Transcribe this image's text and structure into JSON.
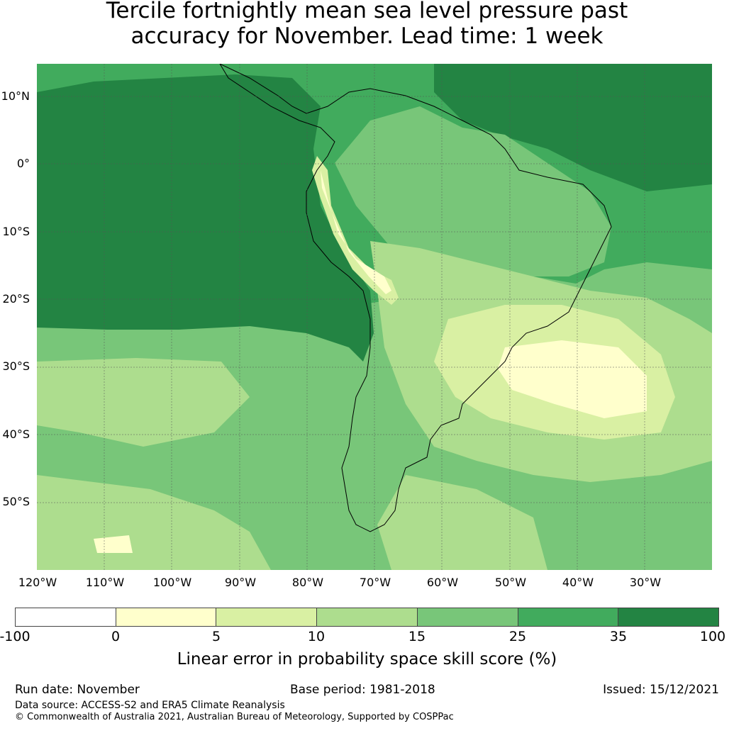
{
  "title": {
    "line1": "Tercile fortnightly mean sea level pressure past",
    "line2": "accuracy for November. Lead time: 1 week"
  },
  "map": {
    "lat_labels": [
      "10°N",
      "0°",
      "10°S",
      "20°S",
      "30°S",
      "40°S",
      "50°S"
    ],
    "lon_labels": [
      "120°W",
      "110°W",
      "100°W",
      "90°W",
      "80°W",
      "70°W",
      "60°W",
      "50°W",
      "40°W",
      "30°W"
    ]
  },
  "colorbar": {
    "ticks": [
      "-100",
      "0",
      "5",
      "10",
      "15",
      "25",
      "35",
      "100"
    ],
    "colors": [
      "#ffffff",
      "#ffffcc",
      "#d9f0a3",
      "#addd8e",
      "#78c679",
      "#41ab5d",
      "#238443"
    ],
    "label": "Linear error in probability space skill score (%)"
  },
  "footer": {
    "run_date": "Run date: November",
    "base_period": "Base period: 1981-2018",
    "issued": "Issued: 15/12/2021",
    "data_source": "Data source: ACCESS-S2 and ERA5 Climate Reanalysis",
    "copyright": "© Commonwealth of Australia 2021, Australian Bureau of Meteorology, Supported by COSPPac"
  }
}
